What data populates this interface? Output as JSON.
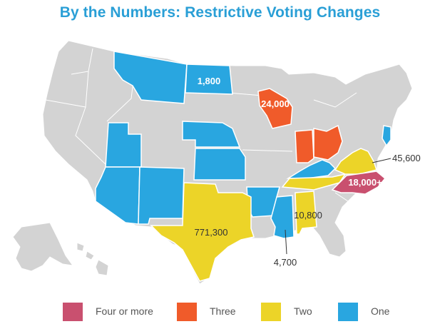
{
  "title": "By the Numbers: Restrictive Voting Changes",
  "colors": {
    "four_or_more": "#c9506f",
    "three": "#f05b2a",
    "two": "#ecd428",
    "one": "#29a6e0",
    "none": "#d3d3d3",
    "water": "#ffffff"
  },
  "map_labels": {
    "north_dakota": "1,800",
    "wisconsin": "24,000",
    "virginia": "45,600",
    "north_carolina": "18,000+",
    "alabama": "10,800",
    "texas": "771,300",
    "mississippi": "4,700"
  },
  "legend": [
    {
      "label": "Four or more",
      "color_key": "four_or_more"
    },
    {
      "label": "Three",
      "color_key": "three"
    },
    {
      "label": "Two",
      "color_key": "two"
    },
    {
      "label": "One",
      "color_key": "one"
    }
  ]
}
